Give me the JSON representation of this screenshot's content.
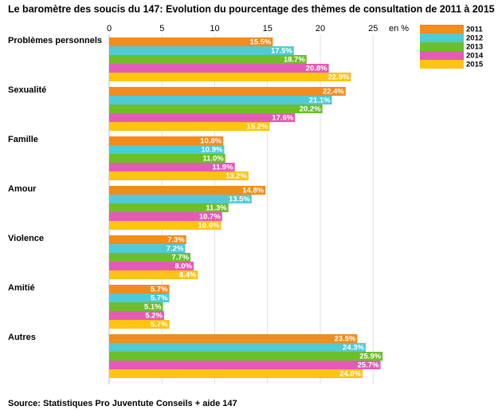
{
  "chart_data": {
    "type": "hbar",
    "title": "Le baromètre des soucis du 147: Evolution du pourcentage des thèmes de consultation de 2011 à 2015",
    "xlabel": "en %",
    "source": "Source: Statistiques Pro Juventute Conseils + aide 147",
    "categories": [
      "Problèmes personnels",
      "Sexualité",
      "Famille",
      "Amour",
      "Violence",
      "Amitié",
      "Autres"
    ],
    "series": [
      {
        "name": "2011",
        "color": "#f28c1c",
        "values": [
          15.5,
          22.4,
          10.8,
          14.8,
          7.3,
          5.7,
          23.5
        ],
        "value_labels": [
          "15.5%",
          "22.4%",
          "10.8%",
          "14.8%",
          "7.3%",
          "5.7%",
          "23.5%"
        ]
      },
      {
        "name": "2012",
        "color": "#4fcbd6",
        "values": [
          17.5,
          21.1,
          10.9,
          13.5,
          7.2,
          5.7,
          24.3
        ],
        "value_labels": [
          "17.5%",
          "21.1%",
          "10.9%",
          "13.5%",
          "7.2%",
          "5.7%",
          "24.3%"
        ]
      },
      {
        "name": "2013",
        "color": "#6cbf2a",
        "values": [
          18.7,
          20.2,
          11.0,
          11.3,
          7.7,
          5.1,
          25.9
        ],
        "value_labels": [
          "18.7%",
          "20.2%",
          "11.0%",
          "11.3%",
          "7.7%",
          "5.1%",
          "25.9%"
        ]
      },
      {
        "name": "2014",
        "color": "#e35bb4",
        "values": [
          20.8,
          17.6,
          11.9,
          10.7,
          8.0,
          5.2,
          25.7
        ],
        "value_labels": [
          "20.8%",
          "17.6%",
          "11.9%",
          "10.7%",
          "8.0%",
          "5.2%",
          "25.7%"
        ]
      },
      {
        "name": "2015",
        "color": "#ffc412",
        "values": [
          22.9,
          15.2,
          13.2,
          10.6,
          8.4,
          5.7,
          24.0
        ],
        "value_labels": [
          "22.9%",
          "15.2%",
          "13.2%",
          "10.6%",
          "8.4%",
          "5.7%",
          "24.0%"
        ]
      }
    ],
    "xlim": [
      0,
      26
    ],
    "xticks": [
      0,
      5,
      10,
      15,
      20,
      25
    ],
    "grid": true
  }
}
